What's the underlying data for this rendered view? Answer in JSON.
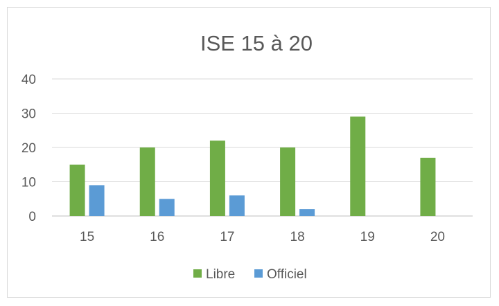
{
  "chart_data": {
    "type": "bar",
    "title": "ISE 15 à 20",
    "xlabel": "",
    "ylabel": "",
    "categories": [
      "15",
      "16",
      "17",
      "18",
      "19",
      "20"
    ],
    "series": [
      {
        "name": "Libre",
        "values": [
          15,
          20,
          22,
          20,
          29,
          17
        ],
        "color": "#70ad47"
      },
      {
        "name": "Officiel",
        "values": [
          9,
          5,
          6,
          2,
          0,
          0
        ],
        "color": "#5b9bd5"
      }
    ],
    "ylim": [
      0,
      40
    ],
    "yticks": [
      "0",
      "10",
      "20",
      "30",
      "40"
    ],
    "grid": true,
    "legend_position": "bottom"
  }
}
